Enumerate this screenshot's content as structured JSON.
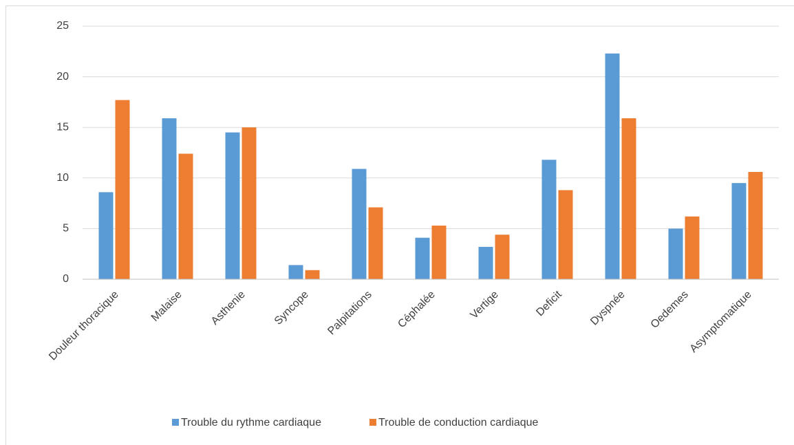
{
  "chart_data": {
    "type": "bar",
    "categories": [
      "Douleur thoracique",
      "Malaise",
      "Asthenie",
      "Syncope",
      "Palpitations",
      "Céphalée",
      "Vertige",
      "Deficit",
      "Dyspnée",
      "Oedemes",
      "Asymptomatique"
    ],
    "series": [
      {
        "name": "Trouble du rythme cardiaque",
        "color": "#5b9bd5",
        "values": [
          8.6,
          15.9,
          14.5,
          1.4,
          10.9,
          4.1,
          3.2,
          11.8,
          22.3,
          5.0,
          9.5
        ]
      },
      {
        "name": "Trouble de conduction cardiaque",
        "color": "#ed7d31",
        "values": [
          17.7,
          12.4,
          15.0,
          0.9,
          7.1,
          5.3,
          4.4,
          8.8,
          15.9,
          6.2,
          10.6
        ]
      }
    ],
    "ylim": [
      0,
      25
    ],
    "yticks": [
      0,
      5,
      10,
      15,
      20,
      25
    ],
    "grid": true,
    "legend": "bottom"
  }
}
